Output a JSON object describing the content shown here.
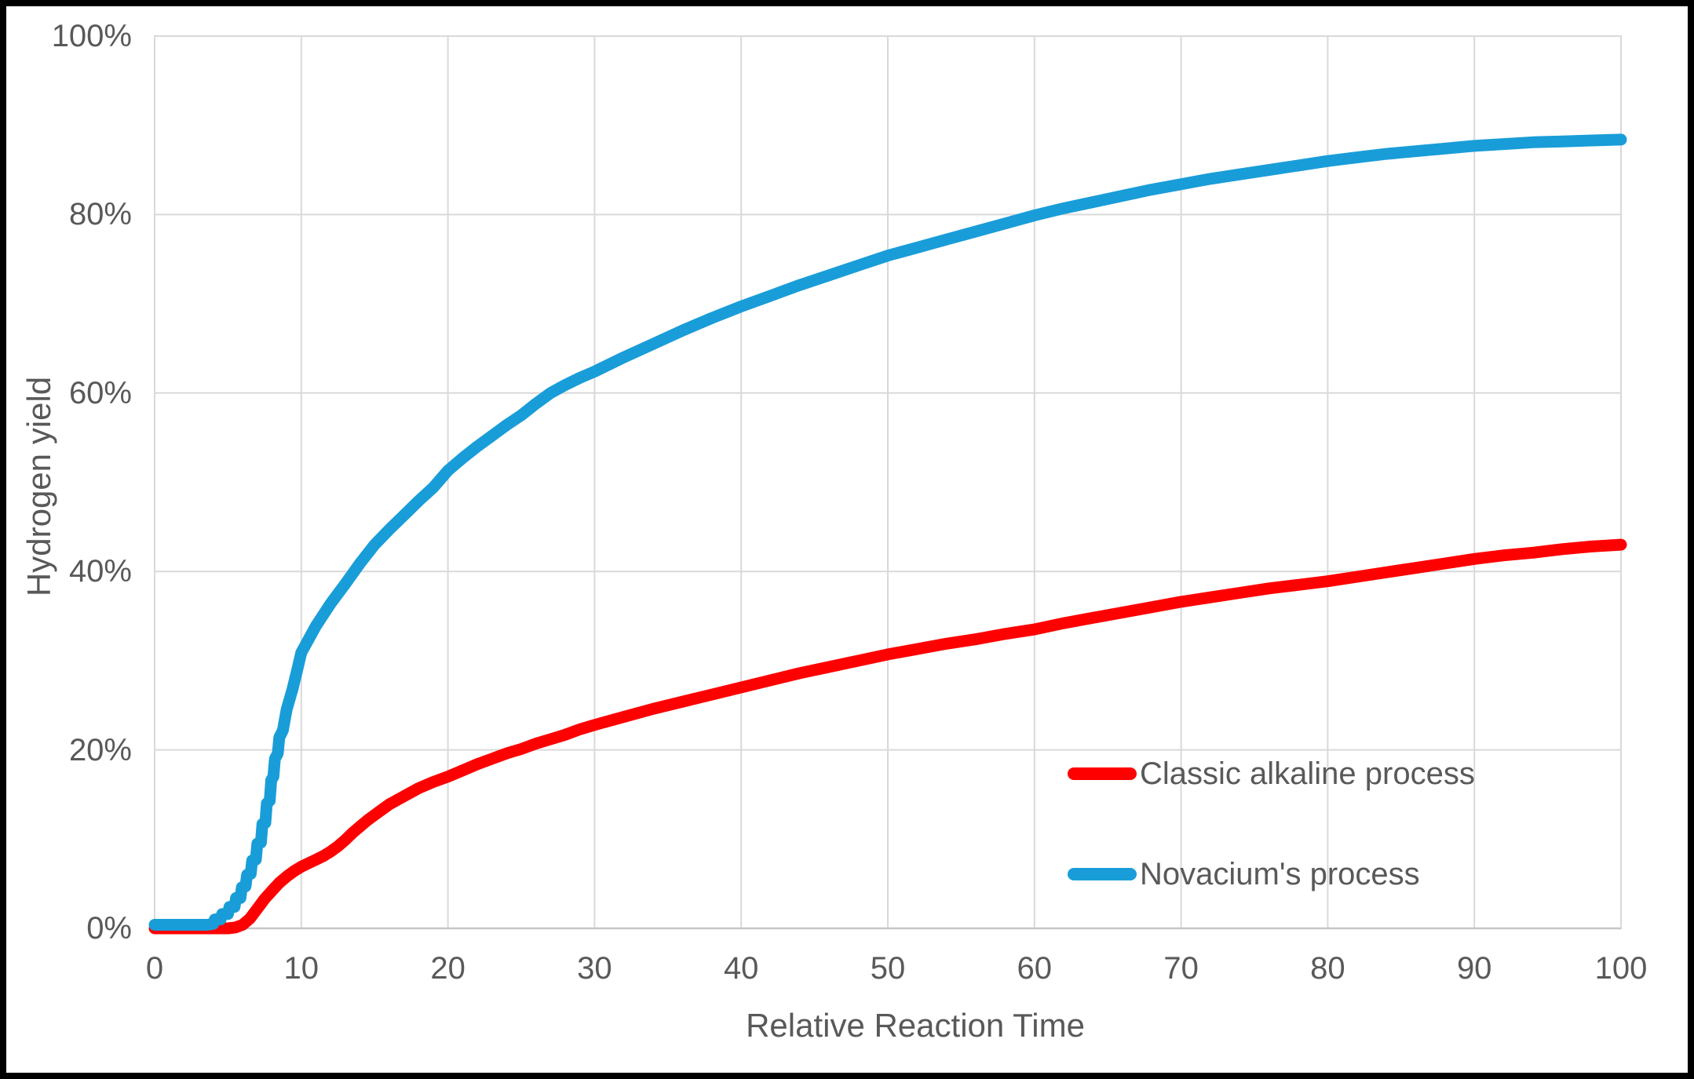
{
  "figure": {
    "background": "#FFFFFF",
    "frame_color": "#000000",
    "text_color": "#595959",
    "gridline_color": "#D9D9D9",
    "axis_line_color": "#C6C6C6"
  },
  "chart_data": {
    "type": "line",
    "title": "",
    "xlabel": "Relative Reaction Time",
    "ylabel": "Hydrogen yield",
    "xlim": [
      0,
      100
    ],
    "ylim": [
      0,
      100
    ],
    "grid": true,
    "legend_position": "inside-lower-right",
    "x_ticks": [
      {
        "label": "0",
        "value": 0
      },
      {
        "label": "10",
        "value": 10
      },
      {
        "label": "20",
        "value": 20
      },
      {
        "label": "30",
        "value": 30
      },
      {
        "label": "40",
        "value": 40
      },
      {
        "label": "50",
        "value": 50
      },
      {
        "label": "60",
        "value": 60
      },
      {
        "label": "70",
        "value": 70
      },
      {
        "label": "80",
        "value": 80
      },
      {
        "label": "90",
        "value": 90
      },
      {
        "label": "100",
        "value": 100
      }
    ],
    "y_ticks": [
      {
        "label": "0%",
        "value": 0
      },
      {
        "label": "20%",
        "value": 20
      },
      {
        "label": "40%",
        "value": 40
      },
      {
        "label": "60%",
        "value": 60
      },
      {
        "label": "80%",
        "value": 80
      },
      {
        "label": "100%",
        "value": 100
      }
    ],
    "series": [
      {
        "name": "Classic alkaline process",
        "color": "#FF0000",
        "points": [
          [
            0,
            0
          ],
          [
            1,
            0
          ],
          [
            2,
            0
          ],
          [
            3,
            0
          ],
          [
            4,
            0
          ],
          [
            5,
            0
          ],
          [
            5.5,
            0.1
          ],
          [
            6,
            0.4
          ],
          [
            6.5,
            1.1
          ],
          [
            7,
            2.2
          ],
          [
            7.5,
            3.3
          ],
          [
            8,
            4.2
          ],
          [
            8.5,
            5.1
          ],
          [
            9,
            5.8
          ],
          [
            9.5,
            6.4
          ],
          [
            10,
            6.9
          ],
          [
            10.5,
            7.3
          ],
          [
            11,
            7.7
          ],
          [
            11.5,
            8.1
          ],
          [
            12,
            8.6
          ],
          [
            12.5,
            9.2
          ],
          [
            13,
            9.9
          ],
          [
            13.5,
            10.7
          ],
          [
            14,
            11.4
          ],
          [
            14.5,
            12.1
          ],
          [
            15,
            12.7
          ],
          [
            16,
            13.9
          ],
          [
            17,
            14.8
          ],
          [
            18,
            15.7
          ],
          [
            19,
            16.4
          ],
          [
            20,
            17
          ],
          [
            21,
            17.7
          ],
          [
            22,
            18.4
          ],
          [
            23,
            19
          ],
          [
            24,
            19.6
          ],
          [
            25,
            20.1
          ],
          [
            26,
            20.7
          ],
          [
            27,
            21.2
          ],
          [
            28,
            21.7
          ],
          [
            29,
            22.3
          ],
          [
            30,
            22.8
          ],
          [
            32,
            23.7
          ],
          [
            34,
            24.6
          ],
          [
            36,
            25.4
          ],
          [
            38,
            26.2
          ],
          [
            40,
            27
          ],
          [
            42,
            27.8
          ],
          [
            44,
            28.6
          ],
          [
            46,
            29.3
          ],
          [
            48,
            30
          ],
          [
            50,
            30.7
          ],
          [
            52,
            31.3
          ],
          [
            54,
            31.9
          ],
          [
            56,
            32.4
          ],
          [
            58,
            33
          ],
          [
            60,
            33.5
          ],
          [
            62,
            34.2
          ],
          [
            64,
            34.8
          ],
          [
            66,
            35.4
          ],
          [
            68,
            36
          ],
          [
            70,
            36.6
          ],
          [
            72,
            37.1
          ],
          [
            74,
            37.6
          ],
          [
            76,
            38.1
          ],
          [
            78,
            38.5
          ],
          [
            80,
            38.9
          ],
          [
            82,
            39.4
          ],
          [
            84,
            39.9
          ],
          [
            86,
            40.4
          ],
          [
            88,
            40.9
          ],
          [
            90,
            41.4
          ],
          [
            92,
            41.8
          ],
          [
            94,
            42.1
          ],
          [
            96,
            42.5
          ],
          [
            98,
            42.8
          ],
          [
            100,
            43
          ]
        ]
      },
      {
        "name": "Novacium's process",
        "color": "#199DD8",
        "points": [
          [
            0,
            0.4
          ],
          [
            1,
            0.4
          ],
          [
            2,
            0.4
          ],
          [
            3,
            0.4
          ],
          [
            3.6,
            0.4
          ],
          [
            4,
            0.5
          ],
          [
            4.1,
            1
          ],
          [
            4.5,
            1
          ],
          [
            4.6,
            1.6
          ],
          [
            5,
            1.6
          ],
          [
            5.1,
            2.4
          ],
          [
            5.45,
            2.4
          ],
          [
            5.55,
            3.4
          ],
          [
            5.85,
            3.4
          ],
          [
            5.95,
            4.6
          ],
          [
            6.2,
            4.7
          ],
          [
            6.3,
            6
          ],
          [
            6.55,
            6.1
          ],
          [
            6.65,
            7.6
          ],
          [
            6.9,
            7.7
          ],
          [
            7,
            9.5
          ],
          [
            7.25,
            9.6
          ],
          [
            7.35,
            11.7
          ],
          [
            7.55,
            11.8
          ],
          [
            7.65,
            14
          ],
          [
            7.85,
            14.3
          ],
          [
            7.95,
            16.6
          ],
          [
            8.1,
            17
          ],
          [
            8.2,
            19
          ],
          [
            8.4,
            19.6
          ],
          [
            8.5,
            21.4
          ],
          [
            8.75,
            22.2
          ],
          [
            9,
            24.5
          ],
          [
            9.4,
            26.8
          ],
          [
            9.7,
            28.8
          ],
          [
            10,
            30.9
          ],
          [
            11,
            33.9
          ],
          [
            12,
            36.4
          ],
          [
            13,
            38.6
          ],
          [
            14,
            40.9
          ],
          [
            15,
            43
          ],
          [
            16,
            44.7
          ],
          [
            17,
            46.3
          ],
          [
            18,
            47.9
          ],
          [
            19,
            49.4
          ],
          [
            20,
            51.3
          ],
          [
            21,
            52.7
          ],
          [
            22,
            54
          ],
          [
            23,
            55.2
          ],
          [
            24,
            56.4
          ],
          [
            25,
            57.5
          ],
          [
            26,
            58.8
          ],
          [
            27,
            60
          ],
          [
            28,
            60.9
          ],
          [
            29,
            61.7
          ],
          [
            30,
            62.4
          ],
          [
            32,
            64
          ],
          [
            34,
            65.5
          ],
          [
            36,
            67
          ],
          [
            38,
            68.4
          ],
          [
            40,
            69.7
          ],
          [
            42,
            70.9
          ],
          [
            44,
            72.1
          ],
          [
            46,
            73.2
          ],
          [
            48,
            74.3
          ],
          [
            50,
            75.4
          ],
          [
            52,
            76.3
          ],
          [
            54,
            77.2
          ],
          [
            56,
            78.1
          ],
          [
            58,
            79
          ],
          [
            60,
            79.9
          ],
          [
            62,
            80.7
          ],
          [
            64,
            81.4
          ],
          [
            66,
            82.1
          ],
          [
            68,
            82.8
          ],
          [
            70,
            83.4
          ],
          [
            72,
            84
          ],
          [
            74,
            84.5
          ],
          [
            76,
            85
          ],
          [
            78,
            85.5
          ],
          [
            80,
            86
          ],
          [
            82,
            86.4
          ],
          [
            84,
            86.8
          ],
          [
            86,
            87.1
          ],
          [
            88,
            87.4
          ],
          [
            90,
            87.7
          ],
          [
            92,
            87.9
          ],
          [
            94,
            88.1
          ],
          [
            96,
            88.2
          ],
          [
            98,
            88.3
          ],
          [
            100,
            88.4
          ]
        ]
      }
    ]
  }
}
